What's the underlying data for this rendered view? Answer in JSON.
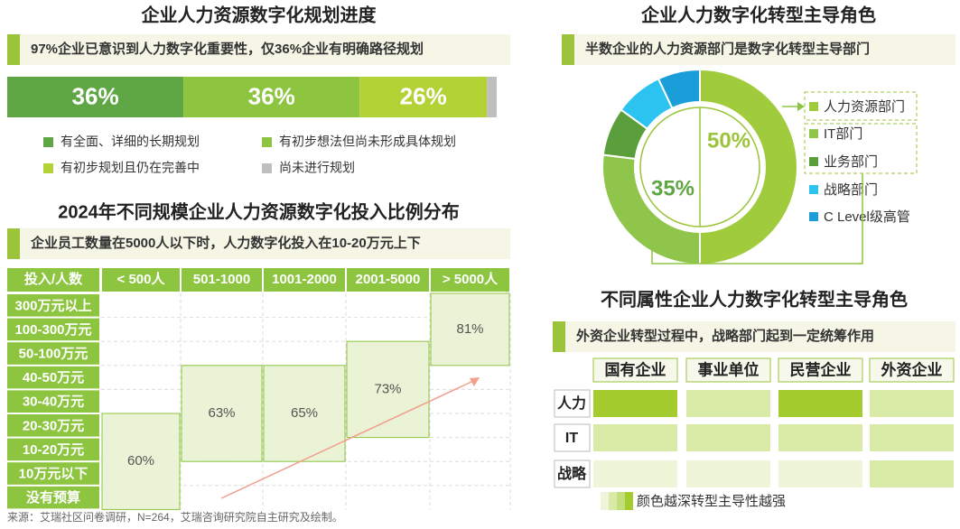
{
  "chart_data": [
    {
      "type": "stacked-bar",
      "title": "企业人力资源数字化规划进度",
      "subtitle": "97%企业已意识到人力数字化重要性，仅36%企业有明确路径规划",
      "series": [
        {
          "name": "有全面、详细的长期规划",
          "color": "#5fa644",
          "values": [
            36
          ],
          "value_labels": [
            "36%"
          ]
        },
        {
          "name": "有初步想法但尚未形成具体规划",
          "color": "#8dc540",
          "values": [
            36
          ],
          "value_labels": [
            "36%"
          ]
        },
        {
          "name": "有初步规划且仍在完善中",
          "color": "#b2d235",
          "values": [
            26
          ],
          "value_labels": [
            "26%"
          ]
        },
        {
          "name": "尚未进行规划",
          "color": "#bfbfbf",
          "values": [
            2
          ]
        }
      ]
    },
    {
      "type": "donut",
      "title": "企业人力数字化转型主导角色",
      "subtitle": "半数企业的人力资源部门是数字化转型主导部门",
      "categories": [
        "人力资源部门",
        "IT部门",
        "业务部门",
        "战略部门",
        "C Level级高管"
      ],
      "values": [
        50,
        27,
        8,
        8,
        7
      ],
      "colors": [
        "#a0cb3c",
        "#8fc54a",
        "#5b9e3c",
        "#2cc3f0",
        "#1a9ed9"
      ],
      "annotations": [
        {
          "value": 50,
          "label": "50%"
        },
        {
          "value": 35,
          "label": "35%"
        }
      ]
    },
    {
      "type": "range-table",
      "title": "2024年不同规模企业人力资源数字化投入比例分布",
      "subtitle": "企业员工数量在5000人以下时，人力数字化投入在10-20万元上下",
      "corner": "投入/人数",
      "categories": [
        "< 500人",
        "501-1000",
        "1001-2000",
        "2001-5000",
        "> 5000人"
      ],
      "rows": [
        "300万元以上",
        "100-300万元",
        "50-100万元",
        "40-50万元",
        "30-40万元",
        "20-30万元",
        "10-20万元",
        "10万元以下",
        "没有预算"
      ],
      "spans": [
        [
          5,
          8
        ],
        [
          3,
          6
        ],
        [
          3,
          6
        ],
        [
          2,
          5
        ],
        [
          0,
          2
        ]
      ],
      "values": [
        60,
        63,
        65,
        73,
        81
      ],
      "value_labels": [
        "60%",
        "63%",
        "65%",
        "73%",
        "81%"
      ]
    },
    {
      "type": "heatmap",
      "title": "不同属性企业人力数字化转型主导角色",
      "subtitle": "外资企业转型过程中，战略部门起到一定统筹作用",
      "categories": [
        "国有企业",
        "事业单位",
        "民营企业",
        "外资企业"
      ],
      "rows": [
        "人力",
        "IT",
        "战略"
      ],
      "values": [
        [
          4,
          2,
          4,
          2
        ],
        [
          2,
          2,
          2,
          2
        ],
        [
          1,
          1,
          1,
          2
        ]
      ],
      "color_scale": [
        "#eef5d8",
        "#d8eaa6",
        "#c2df7c",
        "#a5cc2f"
      ],
      "legend": "颜色越深转型主导性越强"
    }
  ],
  "source": "来源：艾瑞社区问卷调研，N=264，艾瑞咨询研究院自主研究及绘制。"
}
